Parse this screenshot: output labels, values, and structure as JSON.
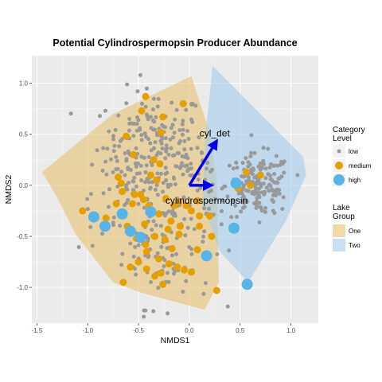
{
  "chart_data": {
    "type": "scatter",
    "title": "Potential Cylindrospermopsin Producer Abundance",
    "xlabel": "NMDS1",
    "ylabel": "NMDS2",
    "xlim": [
      -1.55,
      1.27
    ],
    "ylim": [
      -1.35,
      1.27
    ],
    "x_ticks": [
      -1.5,
      -1.0,
      -0.5,
      0.0,
      0.5,
      1.0
    ],
    "x_tick_labels": [
      "-1.5",
      "-1.0",
      "-0.5",
      "0.0",
      "0.5",
      "1.0"
    ],
    "y_ticks": [
      -1.0,
      -0.5,
      0.0,
      0.5,
      1.0
    ],
    "y_tick_labels": [
      "-1.0",
      "-0.5",
      "0.0",
      "0.5",
      "1.0"
    ],
    "grid": true,
    "legend_placement": "right",
    "hulls": [
      {
        "name": "One",
        "color": "#e6c172",
        "points": [
          [
            -1.45,
            0.13
          ],
          [
            -0.75,
            0.7
          ],
          [
            0.02,
            1.07
          ],
          [
            0.2,
            0.52
          ],
          [
            0.27,
            0.05
          ],
          [
            0.29,
            -0.95
          ],
          [
            0.15,
            -1.22
          ],
          [
            -0.48,
            -1.05
          ],
          [
            -0.75,
            -0.95
          ],
          [
            -1.12,
            -0.48
          ],
          [
            -1.3,
            -0.12
          ]
        ]
      },
      {
        "name": "Two",
        "color": "#a3cceb",
        "points": [
          [
            0.23,
            1.17
          ],
          [
            1.12,
            0.28
          ],
          [
            1.15,
            0.1
          ],
          [
            0.95,
            -0.35
          ],
          [
            0.58,
            -0.95
          ],
          [
            0.3,
            -0.65
          ],
          [
            0.13,
            -0.18
          ],
          [
            0.16,
            0.5
          ]
        ]
      }
    ],
    "series": [
      {
        "name": "low",
        "color": "#999999",
        "size": 2.5,
        "clusters": [
          {
            "cx": -0.33,
            "cy": 0.38,
            "sx": 0.24,
            "sy": 0.28,
            "n": 180
          },
          {
            "cx": -0.22,
            "cy": -0.55,
            "sx": 0.22,
            "sy": 0.32,
            "n": 110
          },
          {
            "cx": -0.65,
            "cy": -0.05,
            "sx": 0.22,
            "sy": 0.3,
            "n": 60
          },
          {
            "cx": 0.68,
            "cy": 0.0,
            "sx": 0.16,
            "sy": 0.15,
            "n": 170
          },
          {
            "cx": 0.08,
            "cy": 0.05,
            "sx": 0.1,
            "sy": 0.18,
            "n": 25
          }
        ]
      },
      {
        "name": "medium",
        "color": "#e69f00",
        "size": 4.5,
        "points": [
          [
            -0.43,
            0.87
          ],
          [
            -0.47,
            0.73
          ],
          [
            -0.26,
            0.67
          ],
          [
            -0.06,
            0.8
          ],
          [
            -0.62,
            0.48
          ],
          [
            -0.28,
            0.52
          ],
          [
            -0.29,
            0.21
          ],
          [
            -0.35,
            0.25
          ],
          [
            -0.7,
            0.08
          ],
          [
            -0.67,
            0.02
          ],
          [
            -0.66,
            -0.06
          ],
          [
            -0.54,
            -0.09
          ],
          [
            -0.48,
            -0.09
          ],
          [
            -0.45,
            -0.14
          ],
          [
            -0.32,
            0.05
          ],
          [
            -0.56,
            -0.18
          ],
          [
            -0.4,
            -0.2
          ],
          [
            -0.23,
            -0.13
          ],
          [
            -0.1,
            -0.16
          ],
          [
            -0.03,
            -0.2
          ],
          [
            0.02,
            -0.25
          ],
          [
            0.08,
            -0.15
          ],
          [
            0.1,
            -0.3
          ],
          [
            -1.05,
            -0.25
          ],
          [
            -0.72,
            -0.18
          ],
          [
            -0.82,
            -0.32
          ],
          [
            -0.61,
            -0.4
          ],
          [
            -0.44,
            -0.38
          ],
          [
            -0.18,
            -0.35
          ],
          [
            -0.09,
            -0.4
          ],
          [
            -0.21,
            -0.43
          ],
          [
            -0.52,
            -0.52
          ],
          [
            -0.43,
            -0.58
          ],
          [
            -0.34,
            -0.5
          ],
          [
            -0.24,
            -0.53
          ],
          [
            -0.1,
            -0.48
          ],
          [
            0.1,
            -0.4
          ],
          [
            0.22,
            -0.5
          ],
          [
            0.2,
            -0.3
          ],
          [
            -0.42,
            -0.65
          ],
          [
            -0.3,
            -0.72
          ],
          [
            -0.2,
            -0.77
          ],
          [
            -0.17,
            -0.62
          ],
          [
            -0.5,
            -0.75
          ],
          [
            -0.42,
            -0.82
          ],
          [
            -0.34,
            -0.89
          ],
          [
            -0.28,
            -0.86
          ],
          [
            -0.12,
            -0.8
          ],
          [
            -0.05,
            -0.83
          ],
          [
            0.02,
            -0.85
          ],
          [
            -0.58,
            -0.8
          ],
          [
            -0.65,
            -0.95
          ],
          [
            -0.26,
            -0.97
          ],
          [
            0.27,
            -1.03
          ],
          [
            0.56,
            0.13
          ],
          [
            0.6,
            0.0
          ],
          [
            0.7,
            0.1
          ],
          [
            0.48,
            -0.03
          ],
          [
            0.08,
            -0.63
          ],
          [
            -0.15,
            -0.2
          ],
          [
            -0.38,
            0.1
          ],
          [
            -0.55,
            0.3
          ],
          [
            -0.3,
            -0.28
          ]
        ]
      },
      {
        "name": "high",
        "color": "#56b4e9",
        "size": 7,
        "points": [
          [
            -0.94,
            -0.31
          ],
          [
            -0.83,
            -0.4
          ],
          [
            -0.66,
            -0.28
          ],
          [
            -0.58,
            -0.45
          ],
          [
            -0.48,
            -0.51
          ],
          [
            -0.38,
            -0.26
          ],
          [
            0.17,
            -0.69
          ],
          [
            0.44,
            -0.42
          ],
          [
            0.46,
            0.02
          ],
          [
            0.57,
            -0.97
          ]
        ]
      }
    ],
    "vectors": [
      {
        "name": "cyl_det",
        "x": 0.26,
        "y": 0.42,
        "label_x": 0.25,
        "label_y": 0.48
      },
      {
        "name": "cylindrospermopsin",
        "x": 0.2,
        "y": 0.0,
        "label_x": 0.17,
        "label_y": -0.18
      }
    ],
    "legend": {
      "category_title": "Category\nLevel",
      "category_items": [
        "low",
        "medium",
        "high"
      ],
      "lake_title": "Lake\nGroup",
      "lake_items": [
        "One",
        "Two"
      ]
    }
  }
}
